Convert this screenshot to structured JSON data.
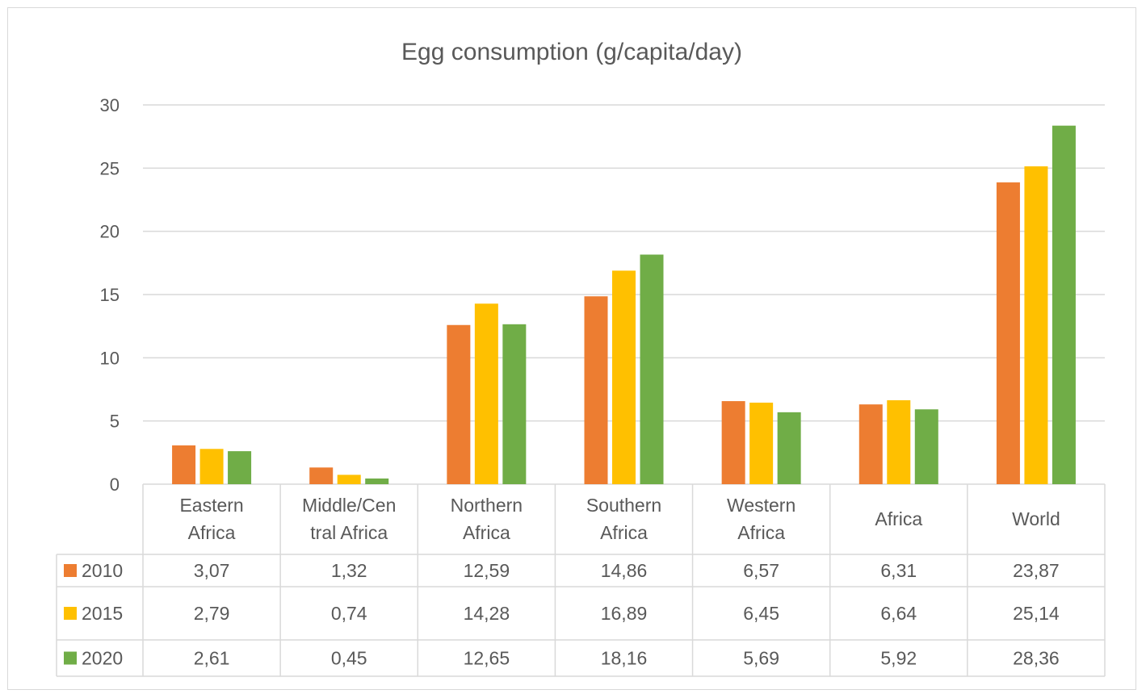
{
  "chart_data": {
    "type": "bar",
    "title": "Egg consumption  (g/capita/day)",
    "categories": [
      [
        "Eastern",
        "Africa"
      ],
      [
        "Middle/Cen",
        "tral Africa"
      ],
      [
        "Northern",
        "Africa"
      ],
      [
        "Southern",
        "Africa"
      ],
      [
        "Western",
        "Africa"
      ],
      [
        "Africa"
      ],
      [
        "World"
      ]
    ],
    "series": [
      {
        "name": "2010",
        "color": "#ED7D31",
        "values": [
          3.07,
          1.32,
          12.59,
          14.86,
          6.57,
          6.31,
          23.87
        ],
        "labels": [
          "3,07",
          "1,32",
          "12,59",
          "14,86",
          "6,57",
          "6,31",
          "23,87"
        ]
      },
      {
        "name": "2015",
        "color": "#FFC000",
        "values": [
          2.79,
          0.74,
          14.28,
          16.89,
          6.45,
          6.64,
          25.14
        ],
        "labels": [
          "2,79",
          "0,74",
          "14,28",
          "16,89",
          "6,45",
          "6,64",
          "25,14"
        ]
      },
      {
        "name": "2020",
        "color": "#70AD47",
        "values": [
          2.61,
          0.45,
          12.65,
          18.16,
          5.69,
          5.92,
          28.36
        ],
        "labels": [
          "2,61",
          "0,45",
          "12,65",
          "18,16",
          "5,69",
          "5,92",
          "28,36"
        ]
      }
    ],
    "ylim": [
      0,
      30
    ],
    "yticks": [
      0,
      5,
      10,
      15,
      20,
      25,
      30
    ],
    "grid": true,
    "legend": "data-table"
  }
}
